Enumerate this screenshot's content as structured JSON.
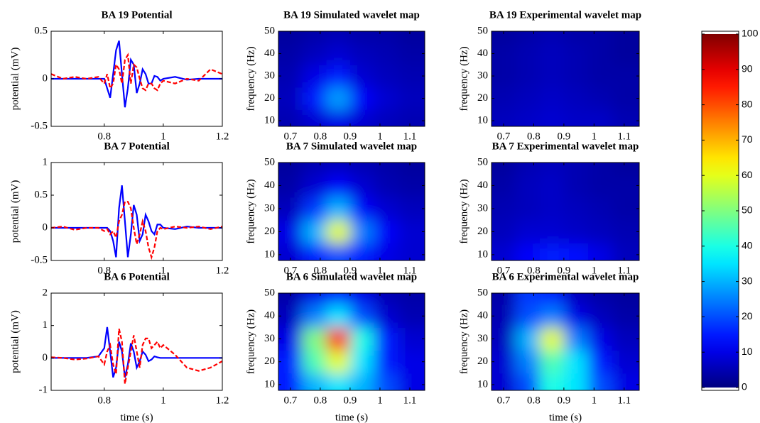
{
  "chart_data": [
    {
      "type": "line",
      "title": "BA 19 Potential",
      "ylabel": "potential (mV)",
      "x": [
        0.62,
        0.66,
        0.7,
        0.74,
        0.78,
        0.8,
        0.81,
        0.82,
        0.83,
        0.84,
        0.85,
        0.86,
        0.87,
        0.88,
        0.89,
        0.9,
        0.91,
        0.92,
        0.93,
        0.94,
        0.95,
        0.96,
        0.97,
        0.98,
        0.99,
        1.0,
        1.04,
        1.08,
        1.12,
        1.16,
        1.2
      ],
      "xlim": [
        0.62,
        1.2
      ],
      "xticks": [
        0.8,
        1,
        1.2
      ],
      "ylim": [
        -0.5,
        0.5
      ],
      "yticks": [
        -0.5,
        0,
        0.5
      ],
      "series": [
        {
          "color": "#0000ff",
          "style": "solid",
          "values": [
            0,
            0,
            0,
            0,
            0,
            0,
            -0.1,
            -0.2,
            0.05,
            0.3,
            0.4,
            0.05,
            -0.3,
            -0.1,
            0.2,
            0.15,
            -0.15,
            -0.05,
            0.1,
            0.05,
            -0.05,
            -0.05,
            0.03,
            0.02,
            -0.02,
            0,
            0.02,
            -0.01,
            0,
            0,
            0
          ]
        },
        {
          "color": "#ff0000",
          "style": "dashed",
          "values": [
            0.05,
            0,
            0.02,
            0,
            0.02,
            -0.05,
            0.05,
            -0.1,
            -0.05,
            0.15,
            0.1,
            -0.05,
            0.2,
            0.25,
            -0.05,
            0.15,
            0.12,
            0,
            -0.1,
            -0.12,
            -0.05,
            -0.05,
            -0.1,
            -0.12,
            -0.05,
            -0.02,
            -0.05,
            0,
            -0.02,
            0.1,
            0.05
          ]
        }
      ]
    },
    {
      "type": "heatmap",
      "title": "BA 19 Simulated wavelet map",
      "ylabel": "frequency (Hz)",
      "xlim": [
        0.66,
        1.15
      ],
      "xticks": [
        0.7,
        0.8,
        0.9,
        1,
        1.1
      ],
      "ylim": [
        7.5,
        50
      ],
      "yticks": [
        10,
        20,
        30,
        40,
        50
      ],
      "x": [
        0.7,
        0.78,
        0.86,
        0.94,
        1.02,
        1.1
      ],
      "y": [
        10,
        20,
        30,
        40,
        50
      ],
      "values": [
        [
          5,
          8,
          10,
          8,
          6,
          5
        ],
        [
          6,
          15,
          28,
          12,
          8,
          6
        ],
        [
          5,
          10,
          15,
          8,
          6,
          5
        ],
        [
          4,
          6,
          8,
          6,
          5,
          4
        ],
        [
          3,
          4,
          5,
          4,
          4,
          3
        ]
      ]
    },
    {
      "type": "heatmap",
      "title": "BA 19 Experimental wavelet map",
      "ylabel": "frequency (Hz)",
      "xlim": [
        0.66,
        1.15
      ],
      "xticks": [
        0.7,
        0.8,
        0.9,
        1,
        1.1
      ],
      "ylim": [
        7.5,
        50
      ],
      "yticks": [
        10,
        20,
        30,
        40,
        50
      ],
      "x": [
        0.7,
        0.78,
        0.86,
        0.94,
        1.02,
        1.1
      ],
      "y": [
        10,
        20,
        30,
        40,
        50
      ],
      "values": [
        [
          6,
          7,
          8,
          7,
          7,
          5
        ],
        [
          5,
          6,
          7,
          6,
          5,
          4
        ],
        [
          4,
          5,
          6,
          5,
          4,
          4
        ],
        [
          4,
          5,
          6,
          5,
          4,
          3
        ],
        [
          3,
          4,
          5,
          4,
          4,
          3
        ]
      ]
    },
    {
      "type": "line",
      "title": "BA 7 Potential",
      "ylabel": "potential (mV)",
      "x": [
        0.62,
        0.66,
        0.7,
        0.74,
        0.78,
        0.8,
        0.81,
        0.82,
        0.83,
        0.84,
        0.85,
        0.86,
        0.87,
        0.88,
        0.89,
        0.9,
        0.91,
        0.92,
        0.93,
        0.94,
        0.95,
        0.96,
        0.97,
        0.98,
        0.99,
        1.0,
        1.04,
        1.08,
        1.12,
        1.16,
        1.2
      ],
      "xlim": [
        0.62,
        1.2
      ],
      "xticks": [
        0.8,
        1,
        1.2
      ],
      "ylim": [
        -0.5,
        1
      ],
      "yticks": [
        -0.5,
        0,
        0.5,
        1
      ],
      "series": [
        {
          "color": "#0000ff",
          "style": "solid",
          "values": [
            0,
            0,
            0,
            0,
            0,
            0,
            0,
            -0.05,
            -0.2,
            -0.45,
            0.3,
            0.65,
            0.1,
            -0.45,
            -0.1,
            0.35,
            0.2,
            -0.2,
            -0.1,
            0.2,
            0.1,
            -0.05,
            -0.1,
            0.05,
            0.05,
            0,
            -0.02,
            0.02,
            0,
            0,
            0
          ]
        },
        {
          "color": "#ff0000",
          "style": "dashed",
          "values": [
            0,
            0.02,
            -0.03,
            0,
            0,
            -0.05,
            -0.02,
            -0.1,
            -0.05,
            -0.15,
            0.1,
            0.2,
            0.4,
            0.4,
            0.3,
            0,
            -0.25,
            -0.1,
            0.1,
            -0.05,
            -0.3,
            -0.45,
            -0.3,
            -0.05,
            0,
            -0.02,
            0.02,
            0,
            0.02,
            -0.02,
            0.02
          ]
        }
      ]
    },
    {
      "type": "heatmap",
      "title": "BA 7 Simulated wavelet map",
      "ylabel": "frequency (Hz)",
      "xlim": [
        0.66,
        1.15
      ],
      "xticks": [
        0.7,
        0.8,
        0.9,
        1,
        1.1
      ],
      "ylim": [
        7.5,
        50
      ],
      "yticks": [
        10,
        20,
        30,
        40,
        50
      ],
      "x": [
        0.7,
        0.78,
        0.86,
        0.94,
        1.02,
        1.1
      ],
      "y": [
        10,
        20,
        30,
        40,
        50
      ],
      "values": [
        [
          8,
          15,
          20,
          15,
          10,
          8
        ],
        [
          10,
          30,
          60,
          25,
          12,
          8
        ],
        [
          6,
          18,
          30,
          12,
          8,
          6
        ],
        [
          4,
          8,
          12,
          8,
          5,
          4
        ],
        [
          3,
          5,
          6,
          5,
          4,
          3
        ]
      ]
    },
    {
      "type": "heatmap",
      "title": "BA 7 Experimental wavelet map",
      "ylabel": "frequency (Hz)",
      "xlim": [
        0.66,
        1.15
      ],
      "xticks": [
        0.7,
        0.8,
        0.9,
        1,
        1.1
      ],
      "ylim": [
        7.5,
        50
      ],
      "yticks": [
        10,
        20,
        30,
        40,
        50
      ],
      "x": [
        0.7,
        0.78,
        0.86,
        0.94,
        1.02,
        1.1
      ],
      "y": [
        10,
        20,
        30,
        40,
        50
      ],
      "values": [
        [
          8,
          12,
          15,
          14,
          10,
          6
        ],
        [
          6,
          8,
          8,
          7,
          6,
          5
        ],
        [
          5,
          6,
          7,
          6,
          5,
          4
        ],
        [
          4,
          6,
          7,
          5,
          4,
          4
        ],
        [
          3,
          5,
          6,
          5,
          4,
          3
        ]
      ]
    },
    {
      "type": "line",
      "title": "BA 6 Potential",
      "ylabel": "potential (mV)",
      "xlabel": "time (s)",
      "x": [
        0.62,
        0.66,
        0.7,
        0.74,
        0.78,
        0.8,
        0.81,
        0.82,
        0.83,
        0.84,
        0.85,
        0.86,
        0.87,
        0.88,
        0.89,
        0.9,
        0.91,
        0.92,
        0.93,
        0.94,
        0.95,
        0.96,
        0.97,
        0.98,
        0.99,
        1.0,
        1.04,
        1.08,
        1.12,
        1.16,
        1.2
      ],
      "xlim": [
        0.62,
        1.2
      ],
      "xticks": [
        0.8,
        1,
        1.2
      ],
      "ylim": [
        -1,
        2
      ],
      "yticks": [
        -1,
        0,
        1,
        2
      ],
      "series": [
        {
          "color": "#0000ff",
          "style": "solid",
          "values": [
            0,
            0,
            0,
            0,
            0.05,
            0.3,
            0.95,
            0.2,
            -0.6,
            -0.3,
            0.5,
            0.2,
            -0.6,
            -0.2,
            0.45,
            0.2,
            -0.3,
            -0.1,
            0.2,
            0.1,
            -0.1,
            -0.05,
            0.05,
            0.02,
            0,
            0,
            0,
            0,
            0,
            0,
            0
          ]
        },
        {
          "color": "#ff0000",
          "style": "dashed",
          "values": [
            0.02,
            0,
            -0.05,
            -0.02,
            0.05,
            -0.2,
            0.2,
            0.4,
            -0.2,
            -0.5,
            0.9,
            0.5,
            -0.8,
            -0.3,
            0.2,
            0.7,
            0.2,
            -0.3,
            0.4,
            0.6,
            0.6,
            0.3,
            0.4,
            0.5,
            0.3,
            0.4,
            0.1,
            -0.3,
            -0.4,
            -0.3,
            -0.1
          ]
        }
      ]
    },
    {
      "type": "heatmap",
      "title": "BA 6 Simulated wavelet map",
      "ylabel": "frequency (Hz)",
      "xlabel": "time (s)",
      "xlim": [
        0.66,
        1.15
      ],
      "xticks": [
        0.7,
        0.8,
        0.9,
        1,
        1.1
      ],
      "ylim": [
        7.5,
        50
      ],
      "yticks": [
        10,
        20,
        30,
        40,
        50
      ],
      "x": [
        0.7,
        0.78,
        0.86,
        0.94,
        1.02,
        1.1
      ],
      "y": [
        10,
        20,
        30,
        40,
        50
      ],
      "values": [
        [
          15,
          30,
          35,
          30,
          20,
          10
        ],
        [
          15,
          45,
          60,
          35,
          15,
          10
        ],
        [
          10,
          50,
          85,
          40,
          15,
          8
        ],
        [
          6,
          25,
          35,
          20,
          8,
          5
        ],
        [
          4,
          10,
          15,
          10,
          5,
          4
        ]
      ]
    },
    {
      "type": "heatmap",
      "title": "BA 6 Experimental wavelet map",
      "ylabel": "frequency (Hz)",
      "xlabel": "time (s)",
      "xlim": [
        0.66,
        1.15
      ],
      "xticks": [
        0.7,
        0.8,
        0.9,
        1,
        1.1
      ],
      "ylim": [
        7.5,
        50
      ],
      "yticks": [
        10,
        20,
        30,
        40,
        50
      ],
      "x": [
        0.7,
        0.78,
        0.86,
        0.94,
        1.02,
        1.1
      ],
      "y": [
        10,
        20,
        30,
        40,
        50
      ],
      "values": [
        [
          8,
          20,
          40,
          35,
          20,
          10
        ],
        [
          8,
          25,
          45,
          35,
          15,
          8
        ],
        [
          6,
          30,
          60,
          25,
          10,
          6
        ],
        [
          5,
          20,
          25,
          10,
          6,
          4
        ],
        [
          4,
          18,
          15,
          6,
          4,
          3
        ]
      ]
    },
    {
      "type": "colorbar",
      "colormap": "jet",
      "clim": [
        0,
        100
      ],
      "ylim": [
        -0.8,
        100.8
      ],
      "yticks": [
        0,
        10,
        20,
        30,
        40,
        50,
        60,
        70,
        80,
        90,
        100
      ]
    }
  ]
}
